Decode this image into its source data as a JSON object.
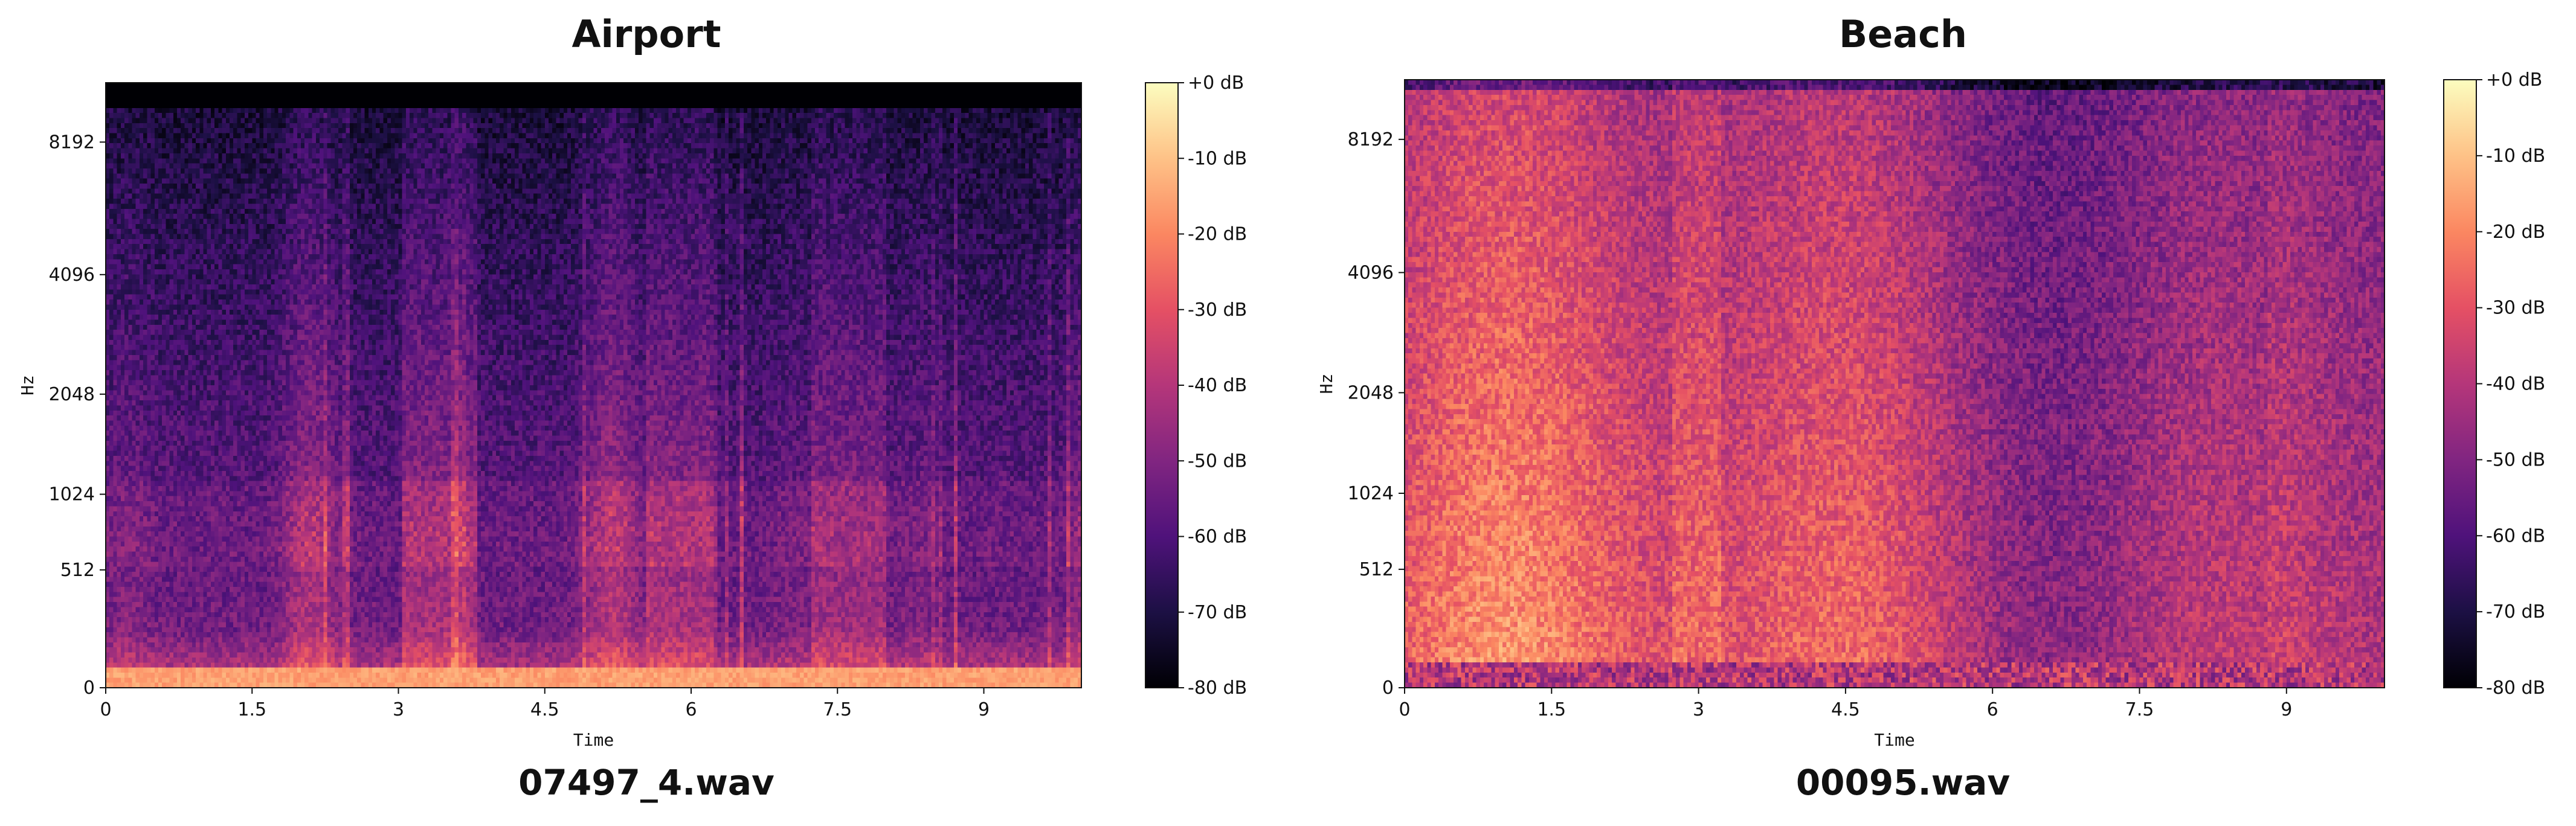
{
  "chart_data": [
    {
      "type": "heatmap",
      "title": "Airport",
      "caption": "07497_4.wav",
      "xlabel": "Time",
      "ylabel": "Hz",
      "x_ticks": [
        "0",
        "1.5",
        "3",
        "4.5",
        "6",
        "7.5",
        "9"
      ],
      "x_tick_values": [
        0,
        1.5,
        3,
        4.5,
        6,
        7.5,
        9
      ],
      "x_range": [
        0,
        10
      ],
      "y_ticks": [
        "0",
        "512",
        "1024",
        "2048",
        "4096",
        "8192"
      ],
      "y_scale": "mel",
      "colorbar_ticks": [
        "+0 dB",
        "-10 dB",
        "-20 dB",
        "-30 dB",
        "-40 dB",
        "-50 dB",
        "-60 dB",
        "-70 dB",
        "-80 dB"
      ],
      "colorbar_range": [
        -80,
        0
      ],
      "colormap": "magma",
      "profile": "quiet-speech"
    },
    {
      "type": "heatmap",
      "title": "Beach",
      "caption": "00095.wav",
      "xlabel": "Time",
      "ylabel": "Hz",
      "x_ticks": [
        "0",
        "1.5",
        "3",
        "4.5",
        "6",
        "7.5",
        "9"
      ],
      "x_tick_values": [
        0,
        1.5,
        3,
        4.5,
        6,
        7.5,
        9
      ],
      "x_range": [
        0,
        10
      ],
      "y_ticks": [
        "0",
        "512",
        "1024",
        "2048",
        "4096",
        "8192"
      ],
      "y_scale": "mel",
      "colorbar_ticks": [
        "+0 dB",
        "-10 dB",
        "-20 dB",
        "-30 dB",
        "-40 dB",
        "-50 dB",
        "-60 dB",
        "-70 dB",
        "-80 dB"
      ],
      "colorbar_range": [
        -80,
        0
      ],
      "colormap": "magma",
      "profile": "broadband-noise"
    }
  ]
}
